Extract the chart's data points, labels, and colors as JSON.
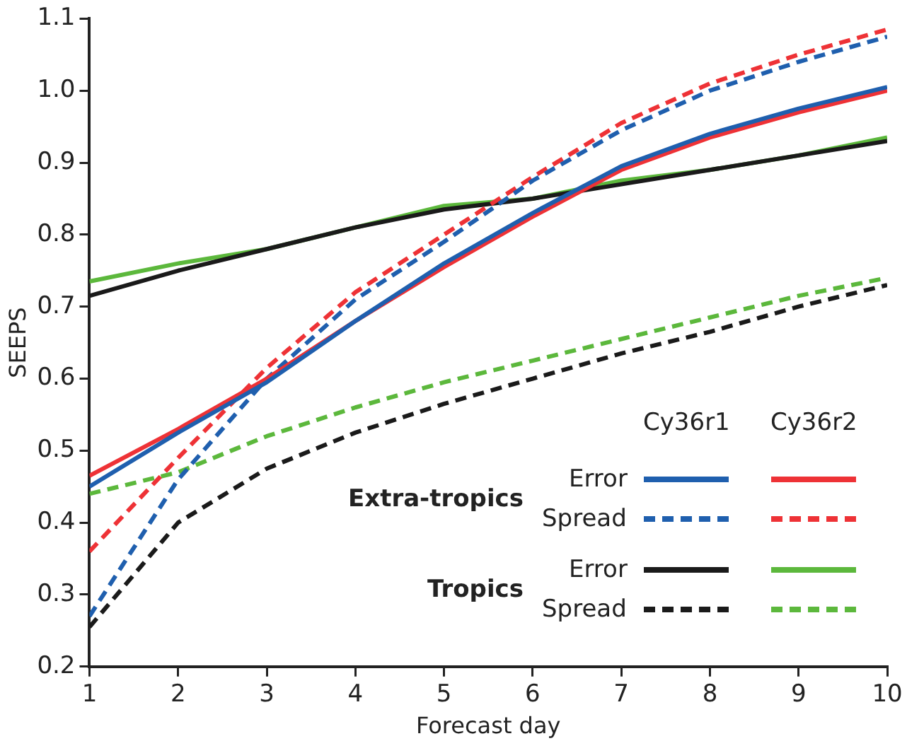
{
  "chart_data": {
    "type": "line",
    "xlabel": "Forecast day",
    "ylabel": "SEEPS",
    "x": [
      1,
      2,
      3,
      4,
      5,
      6,
      7,
      8,
      9,
      10
    ],
    "xlim": [
      1,
      10
    ],
    "xticks": [
      1,
      2,
      3,
      4,
      5,
      6,
      7,
      8,
      9,
      10
    ],
    "ylim": [
      0.2,
      1.1
    ],
    "yticks": [
      0.2,
      0.3,
      0.4,
      0.5,
      0.6,
      0.7,
      0.8,
      0.9,
      {
        "value": 1,
        "label": "1.0"
      },
      1.1
    ],
    "grid": false,
    "legend": "bottom right",
    "marker": "none",
    "annotations": [
      "Cy36r1",
      "Cy36r2",
      "Extra-tropics",
      "Tropics"
    ],
    "series": [
      {
        "name": "Error",
        "color": "#1f5fae",
        "line_style": "solid",
        "values": [
          0.45,
          0.525,
          0.595,
          0.68,
          0.76,
          0.83,
          0.895,
          0.94,
          0.975,
          1.005
        ]
      },
      {
        "color": "#ee3236",
        "line_style": "solid",
        "values": [
          0.465,
          0.53,
          0.6,
          0.68,
          0.755,
          0.825,
          0.89,
          0.935,
          0.97,
          1.0
        ]
      },
      {
        "name": "Spread",
        "color": "#1f5fae",
        "line_style": "dashed",
        "values": [
          0.27,
          0.46,
          0.6,
          0.71,
          0.79,
          0.875,
          0.945,
          1.0,
          1.04,
          1.075
        ]
      },
      {
        "color": "#ee3236",
        "line_style": "dashed",
        "values": [
          0.36,
          0.49,
          0.615,
          0.72,
          0.8,
          0.88,
          0.955,
          1.01,
          1.05,
          1.085
        ]
      },
      {
        "name": "Error",
        "color": "#1a1a1a",
        "line_style": "solid",
        "values": [
          0.715,
          0.75,
          0.78,
          0.81,
          0.835,
          0.85,
          0.87,
          0.89,
          0.91,
          0.93
        ]
      },
      {
        "color": "#5cb83c",
        "line_style": "solid",
        "values": [
          0.735,
          0.76,
          0.78,
          0.81,
          0.84,
          0.85,
          0.875,
          0.89,
          0.91,
          0.935
        ]
      },
      {
        "name": "Spread",
        "color": "#1a1a1a",
        "line_style": "dashed",
        "values": [
          0.255,
          0.4,
          0.475,
          0.525,
          0.565,
          0.6,
          0.635,
          0.665,
          0.7,
          0.73
        ]
      },
      {
        "color": "#5cb83c",
        "line_style": "dashed",
        "values": [
          0.44,
          0.47,
          0.52,
          0.56,
          0.595,
          0.625,
          0.655,
          0.685,
          0.715,
          0.74
        ]
      }
    ]
  }
}
